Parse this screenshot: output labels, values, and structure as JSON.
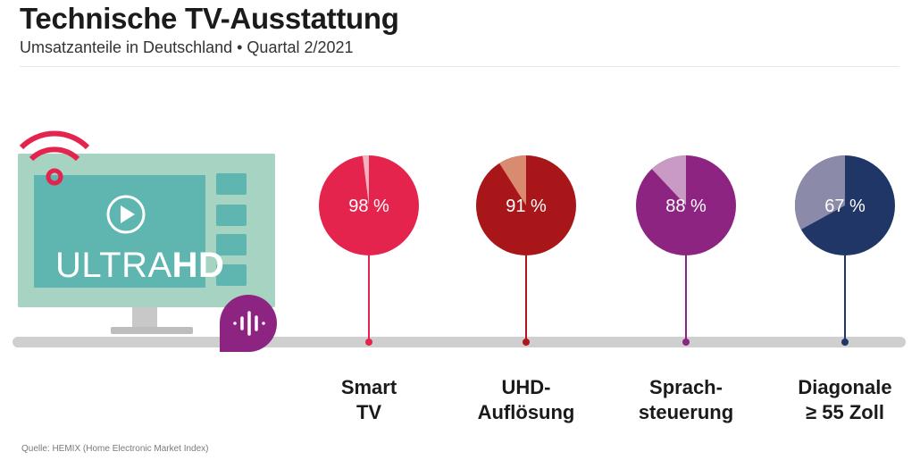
{
  "header": {
    "title": "Technische TV-Ausstattung",
    "subtitle": "Umsatzanteile in Deutschland • Quartal 2/2021"
  },
  "illustration": {
    "tv_text_light": "ULTRA",
    "tv_text_bold": "HD"
  },
  "chart_data": {
    "type": "pie",
    "unit": "%",
    "items": [
      {
        "label_line1": "Smart",
        "label_line2": "TV",
        "value": 98,
        "value_label": "98 %",
        "color": "#e5244d",
        "light": "#f3b3be",
        "stem": "#e5244d"
      },
      {
        "label_line1": "UHD-",
        "label_line2": "Auflösung",
        "value": 91,
        "value_label": "91 %",
        "color": "#a8161a",
        "light": "#d88b6e",
        "stem": "#b0161b"
      },
      {
        "label_line1": "Sprach-",
        "label_line2": "steuerung",
        "value": 88,
        "value_label": "88 %",
        "color": "#8e2481",
        "light": "#c99bc4",
        "stem": "#8e2481"
      },
      {
        "label_line1": "Diagonale",
        "label_line2": "≥ 55 Zoll",
        "value": 67,
        "value_label": "67 %",
        "color": "#1f3666",
        "light": "#8b8aa9",
        "stem": "#1f3666"
      }
    ]
  },
  "footer": {
    "source": "Quelle: HEMIX (Home Electronic Market Index)"
  },
  "colors": {
    "wifi": "#e5244d",
    "screen": "#a7d3c3",
    "screen_inner": "#5fb5b0",
    "voice_bubble": "#8e2481",
    "shelf": "#cfcfcf"
  }
}
